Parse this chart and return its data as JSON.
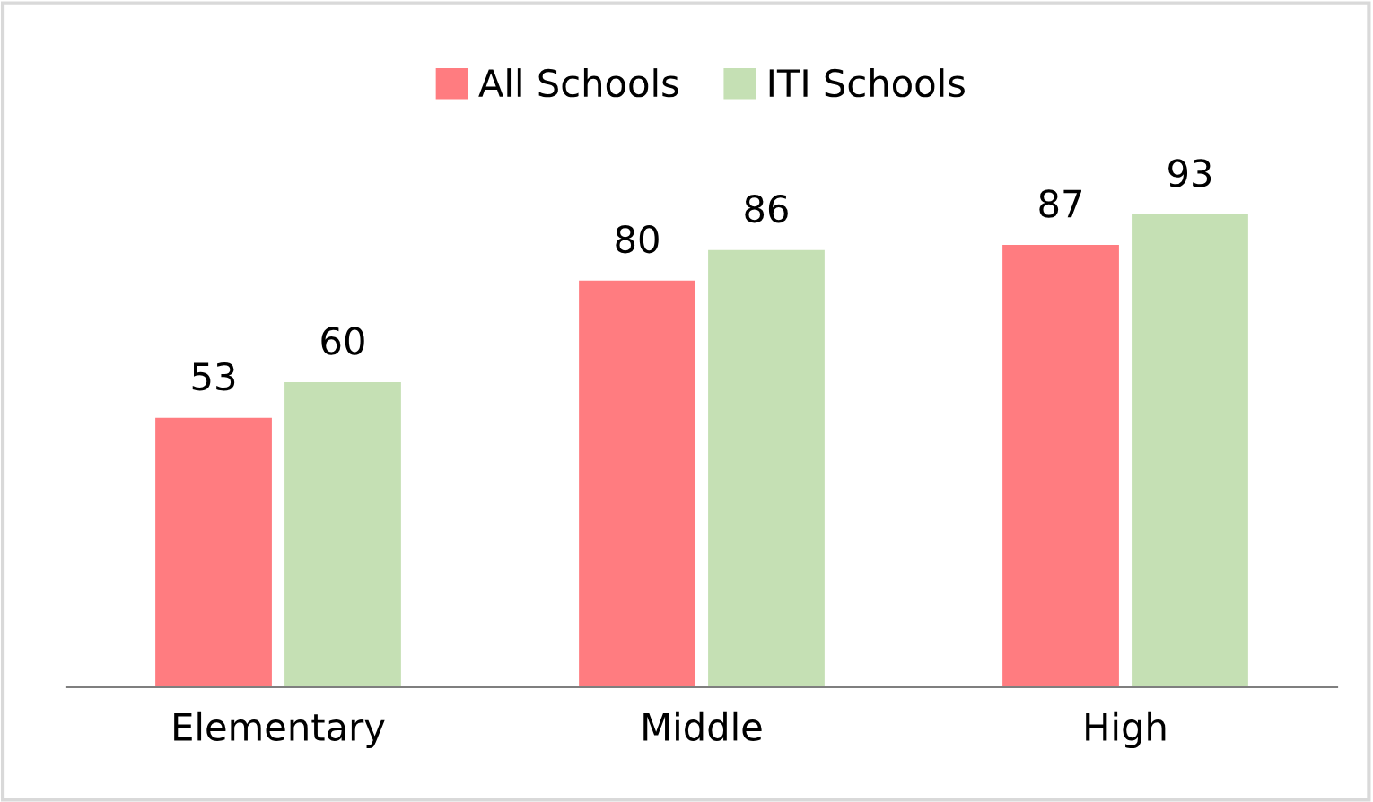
{
  "chart_data": {
    "type": "bar",
    "categories": [
      "Elementary",
      "Middle",
      "High"
    ],
    "series": [
      {
        "name": "All Schools",
        "color": "#ff7c80",
        "values": [
          53,
          80,
          87
        ]
      },
      {
        "name": "ITI Schools",
        "color": "#c5e0b4",
        "values": [
          60,
          86,
          93
        ]
      }
    ],
    "data_labels": true,
    "legend": "top",
    "grid": false
  }
}
